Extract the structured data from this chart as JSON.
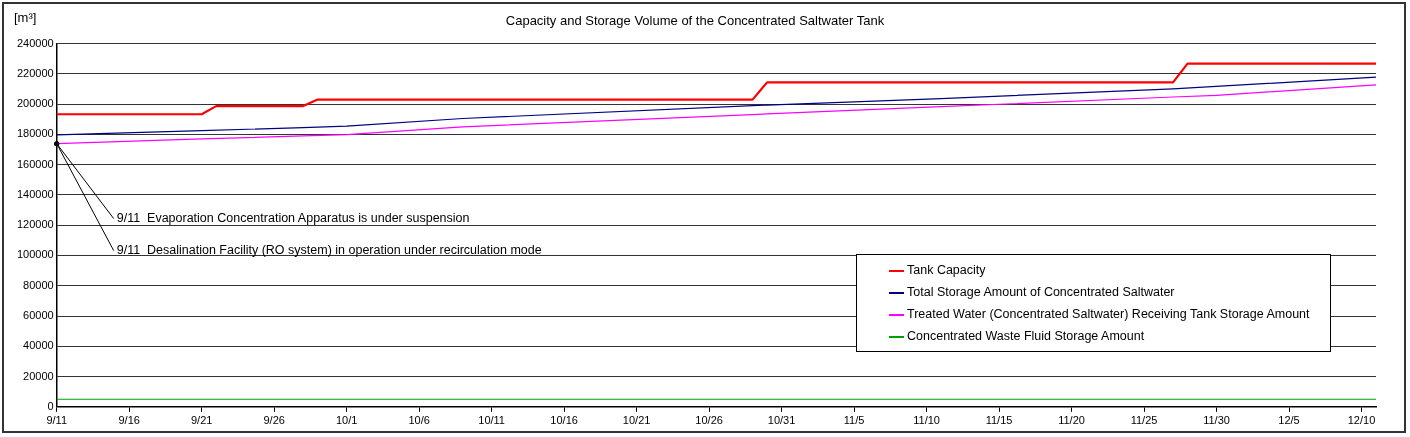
{
  "chart_data": {
    "type": "line",
    "title": "Capacity and Storage Volume of the Concentrated Saltwater Tank",
    "ylabel": "[m³]",
    "xlim": [
      "--09-11",
      "--12-11"
    ],
    "ylim": [
      0,
      240000
    ],
    "yticks": [
      0,
      20000,
      40000,
      60000,
      80000,
      100000,
      120000,
      140000,
      160000,
      180000,
      200000,
      220000,
      240000
    ],
    "xticks": [
      {
        "value": "--09-11",
        "label": "9/11"
      },
      {
        "value": "--09-16",
        "label": "9/16"
      },
      {
        "value": "--09-21",
        "label": "9/21"
      },
      {
        "value": "--09-26",
        "label": "9/26"
      },
      {
        "value": "--10-01",
        "label": "10/1"
      },
      {
        "value": "--10-06",
        "label": "10/6"
      },
      {
        "value": "--10-11",
        "label": "10/11"
      },
      {
        "value": "--10-16",
        "label": "10/16"
      },
      {
        "value": "--10-21",
        "label": "10/21"
      },
      {
        "value": "--10-26",
        "label": "10/26"
      },
      {
        "value": "--10-31",
        "label": "10/31"
      },
      {
        "value": "--11-05",
        "label": "11/5"
      },
      {
        "value": "--11-10",
        "label": "11/10"
      },
      {
        "value": "--11-15",
        "label": "11/15"
      },
      {
        "value": "--11-20",
        "label": "11/20"
      },
      {
        "value": "--11-25",
        "label": "11/25"
      },
      {
        "value": "--11-30",
        "label": "11/30"
      },
      {
        "value": "--12-05",
        "label": "12/5"
      },
      {
        "value": "--12-10",
        "label": "12/10"
      }
    ],
    "grid": "y",
    "legend": "bottom right",
    "marker": "none",
    "series": [
      {
        "name": "Tank Capacity",
        "color": "#ff0000",
        "x": [
          "--09-11",
          "--09-21",
          "--09-22",
          "--09-28",
          "--09-29",
          "--10-29",
          "--10-30",
          "--11-27",
          "--11-28",
          "--12-11"
        ],
        "values": [
          193300,
          193300,
          198700,
          198700,
          203000,
          203000,
          214400,
          214400,
          226800,
          226800
        ]
      },
      {
        "name": "Total Storage Amount of Concentrated Saltwater",
        "color": "#000080",
        "x": [
          "--09-11",
          "--09-21",
          "--09-28",
          "--10-01",
          "--10-09",
          "--10-30",
          "--11-11",
          "--11-27",
          "--12-11"
        ],
        "values": [
          179700,
          182500,
          184500,
          185500,
          190500,
          199400,
          203700,
          210100,
          217800
        ]
      },
      {
        "name": "Treated Water (Concentrated Saltwater) Receiving Tank Storage Amount",
        "color": "#ff00ff",
        "x": [
          "--09-11",
          "--09-21",
          "--09-28",
          "--10-01",
          "--10-09",
          "--10-30",
          "--11-11",
          "--11-27",
          "--11-30",
          "--12-11"
        ],
        "values": [
          173900,
          177000,
          179000,
          179800,
          185000,
          193500,
          198300,
          204700,
          205800,
          212700
        ]
      },
      {
        "name": "Concentrated Waste Fluid Storage Amount",
        "color": "#00a000",
        "x": [
          "--09-11",
          "--12-11"
        ],
        "values": [
          5000,
          5000
        ]
      }
    ],
    "annotations": [
      {
        "text": "9/11  Evaporation Concentration Apparatus is under suspension",
        "x": "--09-11",
        "y": 173900
      },
      {
        "text": "9/11  Desalination Facility (RO system) in operation under recirculation mode",
        "x": "--09-11",
        "y": 173900
      }
    ]
  }
}
